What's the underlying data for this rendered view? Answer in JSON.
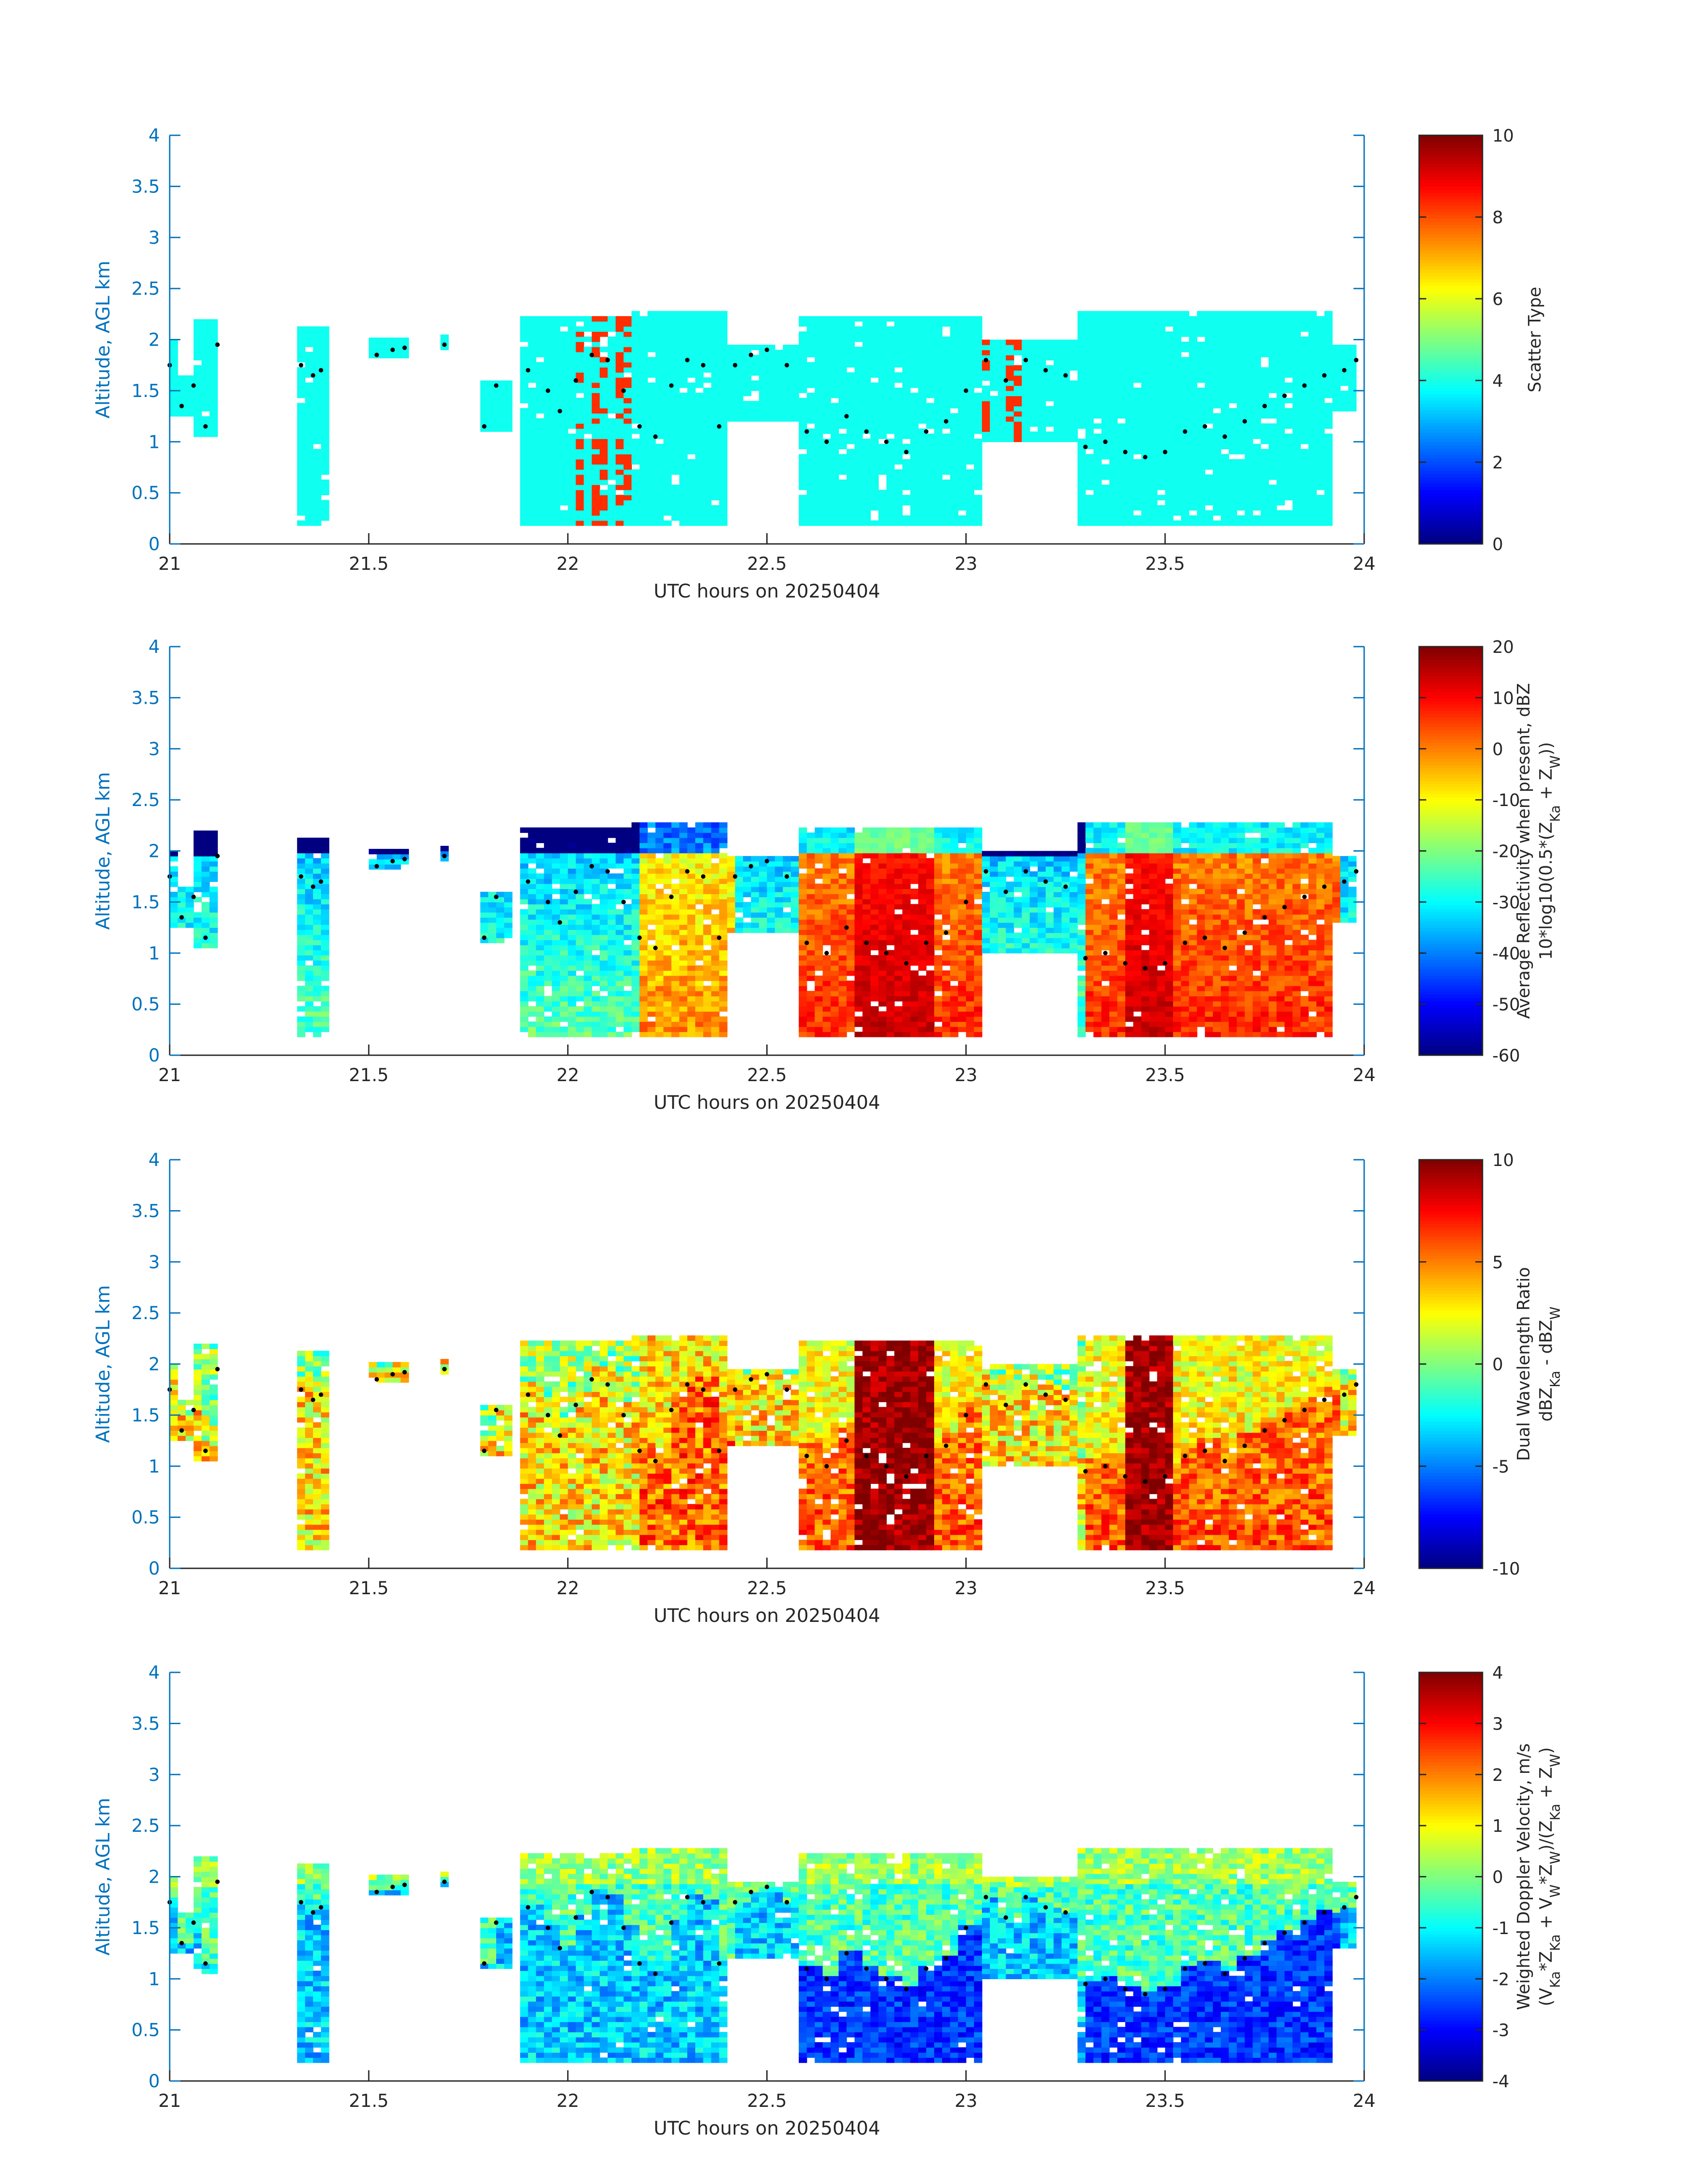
{
  "chart_data": [
    {
      "type": "heatmap",
      "field": "scatter_type",
      "xlabel": "UTC hours on 20250404",
      "ylabel": "Altitude, AGL km",
      "xlim": [
        21,
        24
      ],
      "ylim": [
        0,
        4
      ],
      "xticks": [
        "21",
        "21.5",
        "22",
        "22.5",
        "23",
        "23.5",
        "24"
      ],
      "yticks": [
        "0",
        "0.5",
        "1",
        "1.5",
        "2",
        "2.5",
        "3",
        "3.5",
        "4"
      ],
      "colorbar": {
        "label_lines": [
          "Scatter Type"
        ],
        "clim": [
          0,
          10
        ],
        "ticks": [
          "0",
          "2",
          "4",
          "6",
          "8",
          "10"
        ]
      },
      "colormap": "jet",
      "value_mode": "scatter",
      "base_value": 3.9,
      "accent_value": 8.3,
      "accent_columns": [
        21.14,
        22.02,
        22.07,
        22.12,
        22.14,
        23.04,
        23.11,
        23.12
      ]
    },
    {
      "type": "heatmap",
      "field": "average_reflectivity",
      "xlabel": "UTC hours on 20250404",
      "ylabel": "Altitude, AGL km",
      "xlim": [
        21,
        24
      ],
      "ylim": [
        0,
        4
      ],
      "xticks": [
        "21",
        "21.5",
        "22",
        "22.5",
        "23",
        "23.5",
        "24"
      ],
      "yticks": [
        "0",
        "0.5",
        "1",
        "1.5",
        "2",
        "2.5",
        "3",
        "3.5",
        "4"
      ],
      "colorbar": {
        "label_lines": [
          "Average Reflectivity when present, dBZ",
          "10*log10(0.5*(Z_Ka + Z_W))"
        ],
        "clim": [
          -60,
          20
        ],
        "ticks": [
          "-60",
          "-50",
          "-40",
          "-30",
          "-20",
          "-10",
          "0",
          "10",
          "20"
        ]
      },
      "colormap": "jet",
      "value_mode": "reflectivity"
    },
    {
      "type": "heatmap",
      "field": "dual_wavelength_ratio",
      "xlabel": "UTC hours on 20250404",
      "ylabel": "Altitude, AGL km",
      "xlim": [
        21,
        24
      ],
      "ylim": [
        0,
        4
      ],
      "xticks": [
        "21",
        "21.5",
        "22",
        "22.5",
        "23",
        "23.5",
        "24"
      ],
      "yticks": [
        "0",
        "0.5",
        "1",
        "1.5",
        "2",
        "2.5",
        "3",
        "3.5",
        "4"
      ],
      "colorbar": {
        "label_lines": [
          "Dual Wavelength Ratio",
          "dBZ_Ka - dBZ_W"
        ],
        "clim": [
          -10,
          10
        ],
        "ticks": [
          "-10",
          "-5",
          "0",
          "5",
          "10"
        ]
      },
      "colormap": "jet",
      "value_mode": "dwr"
    },
    {
      "type": "heatmap",
      "field": "weighted_doppler_velocity",
      "xlabel": "UTC hours on 20250404",
      "ylabel": "Altitude, AGL km",
      "xlim": [
        21,
        24
      ],
      "ylim": [
        0,
        4
      ],
      "xticks": [
        "21",
        "21.5",
        "22",
        "22.5",
        "23",
        "23.5",
        "24"
      ],
      "yticks": [
        "0",
        "0.5",
        "1",
        "1.5",
        "2",
        "2.5",
        "3",
        "3.5",
        "4"
      ],
      "colorbar": {
        "label_lines": [
          "Weighted Doppler Velocity, m/s",
          "(V_Ka*Z_Ka + V_W*Z_W)/(Z_Ka + Z_W)"
        ],
        "clim": [
          -4,
          4
        ],
        "ticks": [
          "-4",
          "-3",
          "-2",
          "-1",
          "0",
          "1",
          "2",
          "3",
          "4"
        ]
      },
      "colormap": "jet",
      "value_mode": "velocity"
    }
  ],
  "cloud_segments": [
    {
      "x0": 21.0,
      "x1": 21.02,
      "bot": 1.25,
      "top": 2.0
    },
    {
      "x0": 21.02,
      "x1": 21.07,
      "bot": 1.25,
      "top": 1.65
    },
    {
      "x0": 21.07,
      "x1": 21.13,
      "bot": 1.05,
      "top": 2.2
    },
    {
      "x0": 21.32,
      "x1": 21.4,
      "bot": 0.18,
      "top": 2.1
    },
    {
      "x0": 21.5,
      "x1": 21.6,
      "bot": 1.82,
      "top": 2.02
    },
    {
      "x0": 21.68,
      "x1": 21.7,
      "bot": 1.9,
      "top": 2.05
    },
    {
      "x0": 21.78,
      "x1": 21.85,
      "bot": 1.1,
      "top": 1.6
    },
    {
      "x0": 21.88,
      "x1": 22.16,
      "bot": 0.18,
      "top": 2.2
    },
    {
      "x0": 22.16,
      "x1": 22.4,
      "bot": 0.18,
      "top": 2.25
    },
    {
      "x0": 22.4,
      "x1": 22.57,
      "bot": 1.2,
      "top": 1.95
    },
    {
      "x0": 22.57,
      "x1": 23.03,
      "bot": 0.18,
      "top": 2.2
    },
    {
      "x0": 23.03,
      "x1": 23.28,
      "bot": 1.0,
      "top": 2.0
    },
    {
      "x0": 23.28,
      "x1": 23.92,
      "bot": 0.18,
      "top": 2.25
    },
    {
      "x0": 23.92,
      "x1": 23.98,
      "bot": 1.3,
      "top": 1.95
    }
  ],
  "cloud_base_track": {
    "x": [
      21.0,
      21.03,
      21.06,
      21.09,
      21.12,
      21.33,
      21.36,
      21.38,
      21.52,
      21.56,
      21.59,
      21.69,
      21.79,
      21.82,
      21.9,
      21.95,
      21.98,
      22.02,
      22.06,
      22.1,
      22.14,
      22.18,
      22.22,
      22.26,
      22.3,
      22.34,
      22.38,
      22.42,
      22.46,
      22.5,
      22.55,
      22.6,
      22.65,
      22.7,
      22.75,
      22.8,
      22.85,
      22.9,
      22.95,
      23.0,
      23.05,
      23.1,
      23.15,
      23.2,
      23.25,
      23.3,
      23.35,
      23.4,
      23.45,
      23.5,
      23.55,
      23.6,
      23.65,
      23.7,
      23.75,
      23.8,
      23.85,
      23.9,
      23.95,
      23.98
    ],
    "y": [
      1.75,
      1.35,
      1.55,
      1.15,
      1.95,
      1.75,
      1.65,
      1.7,
      1.85,
      1.9,
      1.92,
      1.95,
      1.15,
      1.55,
      1.7,
      1.5,
      1.3,
      1.6,
      1.85,
      1.8,
      1.5,
      1.15,
      1.05,
      1.55,
      1.8,
      1.75,
      1.15,
      1.75,
      1.85,
      1.9,
      1.75,
      1.1,
      1.0,
      1.25,
      1.1,
      1.0,
      0.9,
      1.1,
      1.2,
      1.5,
      1.8,
      1.6,
      1.8,
      1.7,
      1.65,
      0.95,
      1.0,
      0.9,
      0.85,
      0.9,
      1.1,
      1.15,
      1.05,
      1.2,
      1.35,
      1.45,
      1.55,
      1.65,
      1.7,
      1.8
    ]
  }
}
